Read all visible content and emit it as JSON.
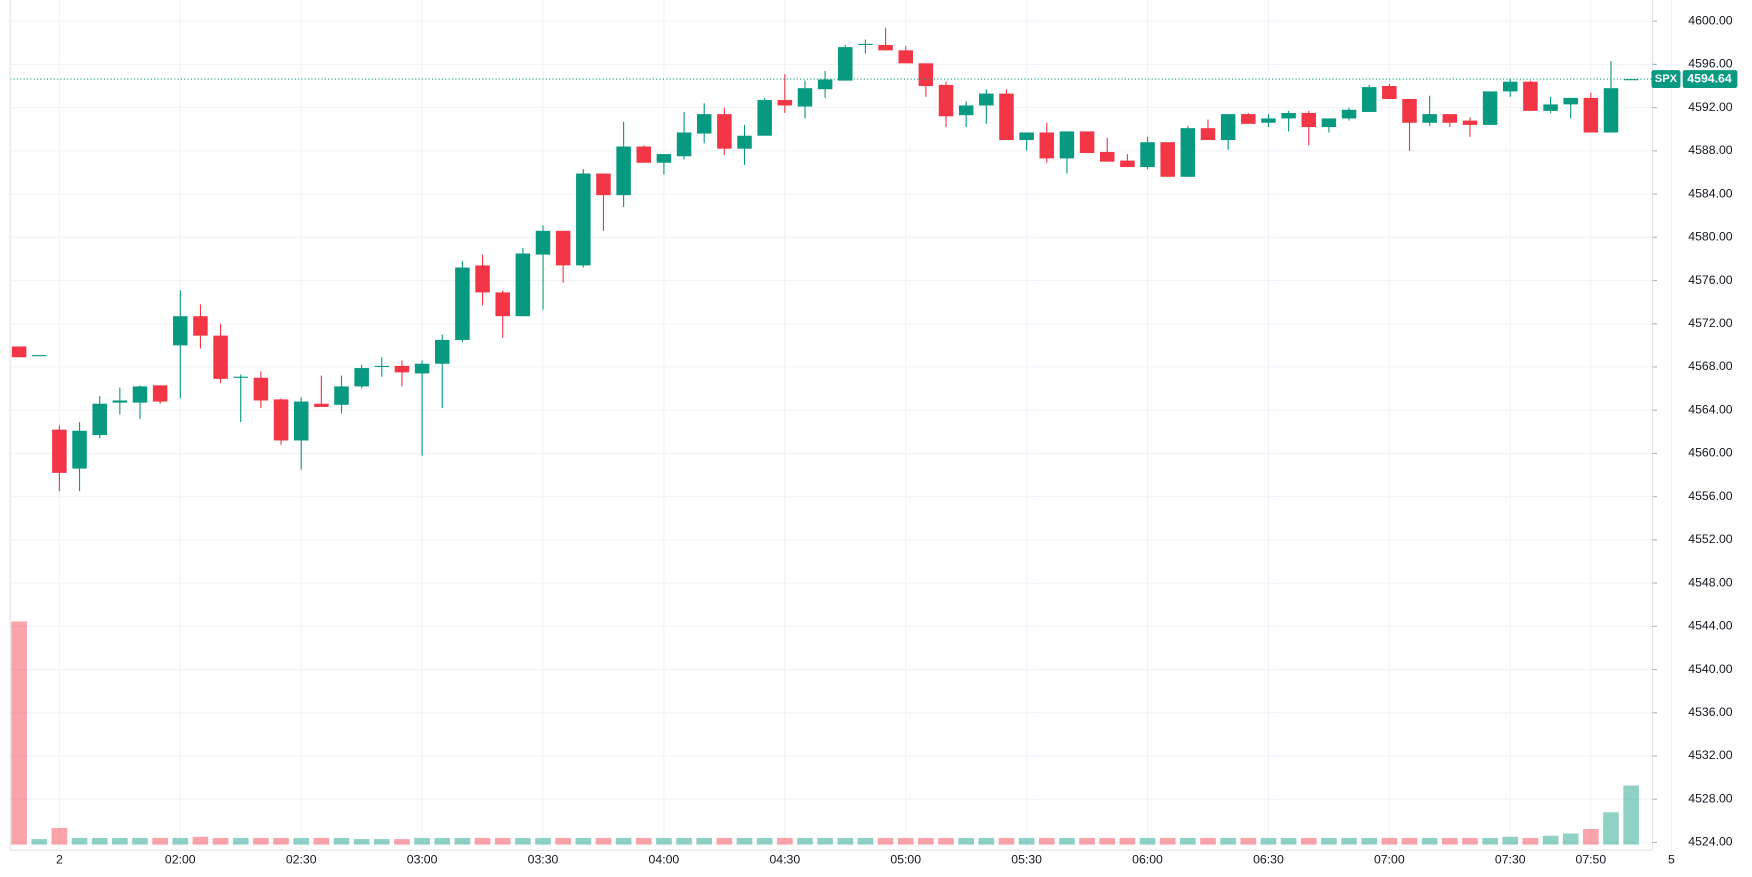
{
  "chart_data": {
    "type": "candlestick",
    "categories": [
      null,
      null,
      "2",
      null,
      null,
      null,
      null,
      null,
      "02:00",
      null,
      null,
      null,
      null,
      null,
      "02:30",
      null,
      null,
      null,
      null,
      null,
      "03:00",
      null,
      null,
      null,
      null,
      null,
      "03:30",
      null,
      null,
      null,
      null,
      null,
      "04:00",
      null,
      null,
      null,
      null,
      null,
      "04:30",
      null,
      null,
      null,
      null,
      null,
      "05:00",
      null,
      null,
      null,
      null,
      null,
      "05:30",
      null,
      null,
      null,
      null,
      null,
      "06:00",
      null,
      null,
      null,
      null,
      null,
      "06:30",
      null,
      null,
      null,
      null,
      null,
      "07:00",
      null,
      null,
      null,
      null,
      null,
      "07:30",
      null,
      null,
      null,
      "07:50",
      null,
      null,
      null,
      "5"
    ],
    "open": [
      4569.9,
      4569.1,
      4562.2,
      4558.6,
      4561.7,
      4564.7,
      4564.7,
      4566.3,
      4570.0,
      4572.7,
      4570.9,
      4567.0,
      4567.0,
      4565.0,
      4561.2,
      4564.6,
      4564.5,
      4566.2,
      4568.0,
      4568.1,
      4567.4,
      4568.3,
      4570.5,
      4577.4,
      4574.9,
      4572.7,
      4578.4,
      4580.6,
      4577.4,
      4585.9,
      4583.9,
      4588.4,
      4586.9,
      4587.5,
      4589.6,
      4591.4,
      4588.2,
      4589.4,
      4592.7,
      4592.1,
      4593.7,
      4594.5,
      4597.8,
      4597.8,
      4597.3,
      4596.1,
      4594.1,
      4591.3,
      4592.2,
      4593.3,
      4589.0,
      4589.7,
      4587.3,
      4589.8,
      4587.9,
      4587.1,
      4586.5,
      4588.8,
      4585.6,
      4590.1,
      4589.0,
      4591.4,
      4590.6,
      4591.0,
      4591.5,
      4590.2,
      4591.0,
      4591.6,
      4594.0,
      4592.8,
      4590.6,
      4591.4,
      4590.8,
      4590.4,
      4593.5,
      4594.4,
      4591.7,
      4592.3,
      4592.9,
      4589.7,
      4594.64,
      null,
      null
    ],
    "high": [
      4569.9,
      4569.1,
      4562.6,
      4562.9,
      4565.3,
      4566.1,
      4566.3,
      4566.3,
      4575.1,
      4573.8,
      4572.0,
      4567.3,
      4567.6,
      4565.1,
      4565.2,
      4567.2,
      4567.2,
      4568.2,
      4568.9,
      4568.6,
      4568.6,
      4571.0,
      4577.8,
      4578.4,
      4575.1,
      4579.0,
      4581.1,
      4580.6,
      4586.3,
      4585.9,
      4590.7,
      4588.5,
      4587.7,
      4591.6,
      4592.4,
      4592.0,
      4590.4,
      4592.9,
      4595.1,
      4594.5,
      4595.4,
      4597.8,
      4598.3,
      4599.4,
      4597.7,
      4596.1,
      4594.4,
      4592.6,
      4593.7,
      4593.7,
      4589.7,
      4590.6,
      4589.8,
      4589.8,
      4589.2,
      4587.7,
      4589.3,
      4588.8,
      4590.3,
      4590.9,
      4591.4,
      4591.5,
      4591.4,
      4591.7,
      4591.7,
      4591.0,
      4592.0,
      4594.1,
      4594.2,
      4592.8,
      4593.1,
      4591.4,
      4591.1,
      4593.5,
      4594.7,
      4594.5,
      4593.0,
      4592.9,
      4593.4,
      4596.3,
      4594.64,
      null,
      null
    ],
    "low": [
      4568.9,
      4569.1,
      4556.5,
      4556.5,
      4561.4,
      4563.6,
      4563.2,
      4564.6,
      4565.1,
      4569.7,
      4566.5,
      4562.9,
      4564.2,
      4560.8,
      4558.5,
      4564.3,
      4563.7,
      4566.0,
      4567.1,
      4566.2,
      4559.8,
      4564.2,
      4570.3,
      4573.7,
      4570.7,
      4572.7,
      4573.3,
      4575.8,
      4577.2,
      4580.6,
      4582.8,
      4586.9,
      4585.8,
      4587.2,
      4588.7,
      4587.6,
      4586.7,
      4589.4,
      4591.5,
      4591.0,
      4592.9,
      4594.5,
      4597.0,
      4597.3,
      4596.1,
      4593.0,
      4590.2,
      4590.2,
      4590.5,
      4589.0,
      4588.0,
      4586.9,
      4585.9,
      4587.8,
      4587.0,
      4586.5,
      4586.3,
      4585.6,
      4585.6,
      4589.0,
      4588.1,
      4590.5,
      4590.2,
      4589.8,
      4588.5,
      4589.7,
      4590.8,
      4591.6,
      4592.8,
      4588.0,
      4590.3,
      4590.2,
      4589.3,
      4590.4,
      4593.0,
      4591.7,
      4591.5,
      4591.0,
      4589.7,
      4589.7,
      4594.64,
      null,
      null
    ],
    "close": [
      4568.9,
      4569.1,
      4558.2,
      4562.1,
      4564.6,
      4564.9,
      4566.2,
      4564.8,
      4572.7,
      4570.9,
      4566.9,
      4567.1,
      4564.9,
      4561.2,
      4564.8,
      4564.3,
      4566.2,
      4567.9,
      4568.1,
      4567.5,
      4568.3,
      4570.5,
      4577.2,
      4574.9,
      4572.7,
      4578.5,
      4580.6,
      4577.4,
      4585.9,
      4583.9,
      4588.4,
      4586.9,
      4587.7,
      4589.7,
      4591.4,
      4588.2,
      4589.4,
      4592.7,
      4592.2,
      4593.8,
      4594.6,
      4597.6,
      4597.9,
      4597.3,
      4596.1,
      4594.0,
      4591.2,
      4592.2,
      4593.3,
      4589.0,
      4589.7,
      4587.3,
      4589.8,
      4587.8,
      4587.0,
      4586.5,
      4588.8,
      4585.6,
      4590.1,
      4589.0,
      4591.4,
      4590.5,
      4591.0,
      4591.5,
      4590.2,
      4591.0,
      4591.8,
      4593.9,
      4592.8,
      4590.6,
      4591.4,
      4590.6,
      4590.4,
      4593.5,
      4594.4,
      4591.7,
      4592.3,
      4592.9,
      4589.7,
      4593.8,
      4594.64,
      null,
      null
    ],
    "volume": [
      200,
      5,
      15,
      6,
      6,
      6,
      6,
      6,
      6,
      7,
      6,
      6,
      6,
      6,
      6,
      6,
      6,
      5,
      5,
      5,
      6,
      6,
      6,
      6,
      6,
      6,
      6,
      6,
      6,
      6,
      6,
      6,
      6,
      6,
      6,
      6,
      6,
      6,
      6,
      6,
      6,
      6,
      6,
      6,
      6,
      6,
      6,
      6,
      6,
      6,
      6,
      6,
      6,
      6,
      6,
      6,
      6,
      6,
      6,
      6,
      6,
      6,
      6,
      6,
      6,
      6,
      6,
      6,
      6,
      6,
      6,
      6,
      6,
      6,
      7,
      6,
      8,
      10,
      14,
      29,
      53,
      null,
      null
    ],
    "up_color": "#089981",
    "down_color": "#f23645",
    "ylim": [
      4523.28,
      4601.96
    ],
    "yticks": [
      {
        "value": 4524,
        "label": "4524.00"
      },
      {
        "value": 4528,
        "label": "4528.00"
      },
      {
        "value": 4532,
        "label": "4532.00"
      },
      {
        "value": 4536,
        "label": "4536.00"
      },
      {
        "value": 4540,
        "label": "4540.00"
      },
      {
        "value": 4544,
        "label": "4544.00"
      },
      {
        "value": 4548,
        "label": "4548.00"
      },
      {
        "value": 4552,
        "label": "4552.00"
      },
      {
        "value": 4556,
        "label": "4556.00"
      },
      {
        "value": 4560,
        "label": "4560.00"
      },
      {
        "value": 4564,
        "label": "4564.00"
      },
      {
        "value": 4568,
        "label": "4568.00"
      },
      {
        "value": 4572,
        "label": "4572.00"
      },
      {
        "value": 4576,
        "label": "4576.00"
      },
      {
        "value": 4580,
        "label": "4580.00"
      },
      {
        "value": 4584,
        "label": "4584.00"
      },
      {
        "value": 4588,
        "label": "4588.00"
      },
      {
        "value": 4592,
        "label": "4592.00"
      },
      {
        "value": 4596,
        "label": "4596.00"
      },
      {
        "value": 4600,
        "label": "4600.00"
      }
    ],
    "grid": true,
    "last_price": {
      "symbol": "SPX",
      "value": 4594.64
    }
  }
}
